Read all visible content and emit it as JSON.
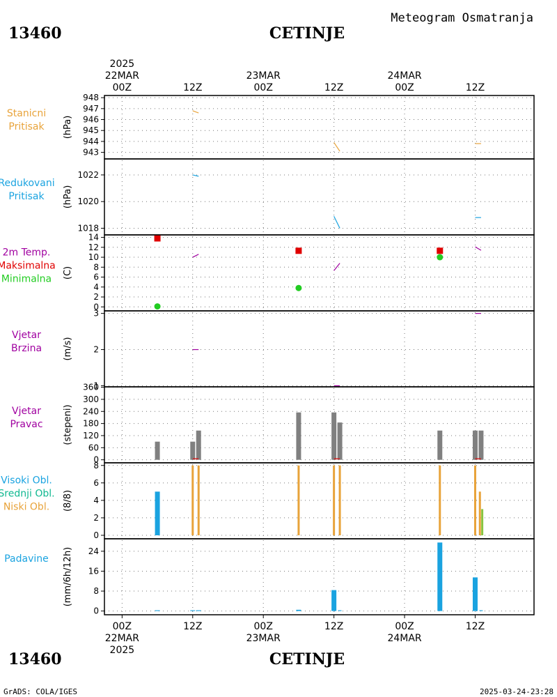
{
  "header": {
    "station_id": "13460",
    "station_name": "CETINJE",
    "subtitle": "Meteogram Osmatranja"
  },
  "footer": {
    "station_id": "13460",
    "station_name": "CETINJE",
    "software": "GrADS: COLA/IGES",
    "timestamp": "2025-03-24-23:28"
  },
  "time_axis": {
    "top_labels": [
      {
        "t": 0,
        "lines": [
          "2025",
          "22MAR",
          "00Z"
        ]
      },
      {
        "t": 12,
        "lines": [
          "12Z"
        ]
      },
      {
        "t": 24,
        "lines": [
          "23MAR",
          "00Z"
        ]
      },
      {
        "t": 36,
        "lines": [
          "12Z"
        ]
      },
      {
        "t": 48,
        "lines": [
          "24MAR",
          "00Z"
        ]
      },
      {
        "t": 60,
        "lines": [
          "12Z"
        ]
      }
    ],
    "bottom_labels": [
      {
        "t": 0,
        "lines": [
          "00Z",
          "22MAR",
          "2025"
        ]
      },
      {
        "t": 12,
        "lines": [
          "12Z"
        ]
      },
      {
        "t": 24,
        "lines": [
          "00Z",
          "23MAR"
        ]
      },
      {
        "t": 36,
        "lines": [
          "12Z"
        ]
      },
      {
        "t": 48,
        "lines": [
          "00Z",
          "24MAR"
        ]
      },
      {
        "t": 60,
        "lines": [
          "12Z"
        ]
      }
    ],
    "range_hours": [
      -3,
      70
    ]
  },
  "colors": {
    "orange": "#e8a33a",
    "blue": "#1aa3e0",
    "red": "#e00000",
    "green": "#22cc22",
    "purple": "#a000a0",
    "gray": "#808080",
    "teal": "#10b890",
    "light_green": "#88c440"
  },
  "chart_data": [
    {
      "type": "line",
      "id": "station_pressure",
      "labels": [
        {
          "text": "Stanicni",
          "color": "#e8a33a"
        },
        {
          "text": "Pritisak",
          "color": "#e8a33a"
        }
      ],
      "ylabel": "(hPa)",
      "ylim": [
        942.4,
        948.2
      ],
      "yticks": [
        943,
        944,
        945,
        946,
        947,
        948
      ],
      "segments": [
        {
          "color": "#e8a33a",
          "points": [
            [
              12,
              946.8
            ],
            [
              13,
              946.6
            ]
          ]
        },
        {
          "color": "#e8a33a",
          "points": [
            [
              36,
              943.9
            ],
            [
              37,
              943.1
            ]
          ]
        },
        {
          "color": "#e8a33a",
          "points": [
            [
              60,
              943.8
            ],
            [
              61,
              943.8
            ]
          ]
        }
      ]
    },
    {
      "type": "line",
      "id": "reduced_pressure",
      "labels": [
        {
          "text": "Redukovani",
          "color": "#1aa3e0"
        },
        {
          "text": "Pritisak",
          "color": "#1aa3e0"
        }
      ],
      "ylabel": "(hPa)",
      "ylim": [
        1017.5,
        1023.2
      ],
      "yticks": [
        1018,
        1020,
        1022
      ],
      "segments": [
        {
          "color": "#1aa3e0",
          "points": [
            [
              12,
              1022.0
            ],
            [
              13,
              1021.9
            ]
          ]
        },
        {
          "color": "#1aa3e0",
          "points": [
            [
              36,
              1018.9
            ],
            [
              37,
              1018.0
            ]
          ]
        },
        {
          "color": "#1aa3e0",
          "points": [
            [
              60,
              1018.8
            ],
            [
              61,
              1018.8
            ]
          ]
        }
      ]
    },
    {
      "type": "scatter",
      "id": "temperature",
      "labels": [
        {
          "text": "2m Temp.",
          "color": "#a000a0"
        },
        {
          "text": "Maksimalna",
          "color": "#e00000"
        },
        {
          "text": "Minimalna",
          "color": "#22cc22"
        }
      ],
      "ylabel": "(C)",
      "ylim": [
        -0.8,
        14.5
      ],
      "yticks": [
        0,
        2,
        4,
        6,
        8,
        10,
        12,
        14
      ],
      "segments": [
        {
          "color": "#a000a0",
          "points": [
            [
              12,
              10.0
            ],
            [
              13,
              10.6
            ]
          ]
        },
        {
          "color": "#a000a0",
          "points": [
            [
              36,
              7.3
            ],
            [
              37,
              8.8
            ]
          ]
        },
        {
          "color": "#a000a0",
          "points": [
            [
              60,
              12.1
            ],
            [
              61,
              11.4
            ]
          ]
        }
      ],
      "max_points": [
        [
          6,
          13.8
        ],
        [
          30,
          11.3
        ],
        [
          54,
          11.3
        ]
      ],
      "min_points": [
        [
          6,
          0.1
        ],
        [
          30,
          3.8
        ],
        [
          54,
          10.0
        ]
      ]
    },
    {
      "type": "line",
      "id": "wind_speed",
      "labels": [
        {
          "text": "Vjetar",
          "color": "#a000a0"
        },
        {
          "text": "Brzina",
          "color": "#a000a0"
        }
      ],
      "ylabel": "(m/s)",
      "ylim": [
        0.97,
        3.07
      ],
      "yticks": [
        1,
        2,
        3
      ],
      "segments": [
        {
          "color": "#a000a0",
          "points": [
            [
              12,
              2.0
            ],
            [
              13,
              2.0
            ]
          ]
        },
        {
          "color": "#a000a0",
          "points": [
            [
              36,
              1.0
            ],
            [
              37,
              1.0
            ]
          ]
        },
        {
          "color": "#a000a0",
          "points": [
            [
              60,
              3.0
            ],
            [
              61,
              3.0
            ]
          ]
        }
      ]
    },
    {
      "type": "bar",
      "id": "wind_direction",
      "labels": [
        {
          "text": "Vjetar",
          "color": "#a000a0"
        },
        {
          "text": "Pravac",
          "color": "#a000a0"
        }
      ],
      "ylabel": "(stepeni)",
      "ylim": [
        -15,
        362
      ],
      "yticks": [
        0,
        60,
        120,
        180,
        240,
        300,
        360
      ],
      "bars": [
        {
          "t": 6,
          "v": 90,
          "color": "#808080"
        },
        {
          "t": 12,
          "v": 90,
          "color": "#808080"
        },
        {
          "t": 13,
          "v": 145,
          "color": "#808080"
        },
        {
          "t": 30,
          "v": 235,
          "color": "#808080"
        },
        {
          "t": 36,
          "v": 235,
          "color": "#808080"
        },
        {
          "t": 37,
          "v": 185,
          "color": "#808080"
        },
        {
          "t": 54,
          "v": 145,
          "color": "#808080"
        },
        {
          "t": 60,
          "v": 145,
          "color": "#808080"
        },
        {
          "t": 61,
          "v": 145,
          "color": "#808080"
        }
      ],
      "segments": [
        {
          "color": "#e00000",
          "points": [
            [
              12,
              5
            ],
            [
              13,
              5
            ]
          ]
        },
        {
          "color": "#e00000",
          "points": [
            [
              36,
              5
            ],
            [
              37,
              5
            ]
          ]
        },
        {
          "color": "#e00000",
          "points": [
            [
              60,
              5
            ],
            [
              61,
              5
            ]
          ]
        }
      ]
    },
    {
      "type": "bar",
      "id": "cloudiness",
      "labels": [
        {
          "text": "Visoki Obl.",
          "color": "#1aa3e0"
        },
        {
          "text": "Srednji Obl.",
          "color": "#10b890"
        },
        {
          "text": "Niski Obl.",
          "color": "#e8a33a"
        }
      ],
      "ylabel": "(8/8)",
      "ylim": [
        -0.4,
        8.3
      ],
      "yticks": [
        0,
        2,
        4,
        6,
        8
      ],
      "bars": [
        {
          "t": 6,
          "v": 5,
          "color": "#1aa3e0",
          "w": 7
        },
        {
          "t": 12,
          "v": 8,
          "color": "#e8a33a",
          "w": 3
        },
        {
          "t": 13,
          "v": 8,
          "color": "#e8a33a",
          "w": 3
        },
        {
          "t": 30,
          "v": 8,
          "color": "#e8a33a",
          "w": 3
        },
        {
          "t": 36,
          "v": 8,
          "color": "#e8a33a",
          "w": 3
        },
        {
          "t": 37,
          "v": 8,
          "color": "#e8a33a",
          "w": 3
        },
        {
          "t": 54,
          "v": 8,
          "color": "#e8a33a",
          "w": 3
        },
        {
          "t": 60,
          "v": 8,
          "color": "#e8a33a",
          "w": 3
        },
        {
          "t": 60.8,
          "v": 5,
          "color": "#e8a33a",
          "w": 3
        },
        {
          "t": 61.2,
          "v": 3,
          "color": "#88c440",
          "w": 3
        }
      ]
    },
    {
      "type": "bar",
      "id": "precipitation",
      "labels": [
        {
          "text": "Padavine",
          "color": "#1aa3e0"
        }
      ],
      "ylabel": "(mm/6h/12h)",
      "ylim": [
        -1.5,
        29
      ],
      "yticks": [
        0,
        8,
        16,
        24
      ],
      "bars": [
        {
          "t": 6,
          "v": 0.3,
          "color": "#1aa3e0",
          "w": 7
        },
        {
          "t": 12,
          "v": 0.3,
          "color": "#1aa3e0",
          "w": 7
        },
        {
          "t": 13,
          "v": 0.3,
          "color": "#1aa3e0",
          "w": 7
        },
        {
          "t": 30,
          "v": 0.5,
          "color": "#1aa3e0",
          "w": 7
        },
        {
          "t": 36,
          "v": 8.4,
          "color": "#1aa3e0",
          "w": 7
        },
        {
          "t": 37,
          "v": 0.3,
          "color": "#1aa3e0",
          "w": 5
        },
        {
          "t": 54,
          "v": 27.5,
          "color": "#1aa3e0",
          "w": 7
        },
        {
          "t": 60,
          "v": 13.5,
          "color": "#1aa3e0",
          "w": 7
        },
        {
          "t": 61,
          "v": 0.3,
          "color": "#1aa3e0",
          "w": 5
        }
      ]
    }
  ]
}
